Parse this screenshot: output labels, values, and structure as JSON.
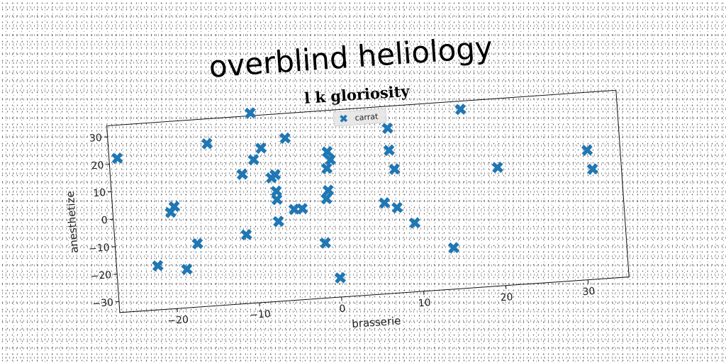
{
  "chart_data": {
    "type": "scatter",
    "title": "overblind heliology",
    "subtitle": "l k gloriosity",
    "xlabel": "brasserie",
    "ylabel": "anesthetize",
    "xlim": [
      -27,
      35
    ],
    "ylim": [
      -34,
      34
    ],
    "xticks": [
      -20,
      -10,
      0,
      10,
      20,
      30
    ],
    "yticks": [
      -30,
      -20,
      -10,
      0,
      10,
      20,
      30
    ],
    "grid": false,
    "legend_position": "top-center",
    "marker": "X",
    "color": "#1f77b4",
    "series": [
      {
        "name": "carrat",
        "points": [
          [
            -26,
            22
          ],
          [
            -22,
            -18
          ],
          [
            -20,
            1
          ],
          [
            -19.5,
            3
          ],
          [
            -18.5,
            -20
          ],
          [
            -17,
            -11
          ],
          [
            -15,
            25
          ],
          [
            -11,
            -9
          ],
          [
            -11,
            13
          ],
          [
            -9.5,
            35
          ],
          [
            -9.5,
            18
          ],
          [
            -8.5,
            22
          ],
          [
            -7.5,
            11
          ],
          [
            -7,
            12
          ],
          [
            -7,
            6
          ],
          [
            -7,
            3
          ],
          [
            -7,
            -5
          ],
          [
            -5.5,
            25
          ],
          [
            -5,
            -1
          ],
          [
            -4,
            -1
          ],
          [
            -1.5,
            -14
          ],
          [
            -1,
            2
          ],
          [
            -0.7,
            5
          ],
          [
            -0.7,
            13
          ],
          [
            -0.5,
            19
          ],
          [
            -0.2,
            16
          ],
          [
            0,
            -27
          ],
          [
            6,
            -1
          ],
          [
            7,
            26
          ],
          [
            7,
            18
          ],
          [
            7.5,
            11
          ],
          [
            7.5,
            -3
          ],
          [
            9.5,
            -9
          ],
          [
            14,
            -19
          ],
          [
            16,
            31
          ],
          [
            20,
            9
          ],
          [
            31,
            13
          ],
          [
            31.5,
            6
          ]
        ]
      }
    ]
  }
}
